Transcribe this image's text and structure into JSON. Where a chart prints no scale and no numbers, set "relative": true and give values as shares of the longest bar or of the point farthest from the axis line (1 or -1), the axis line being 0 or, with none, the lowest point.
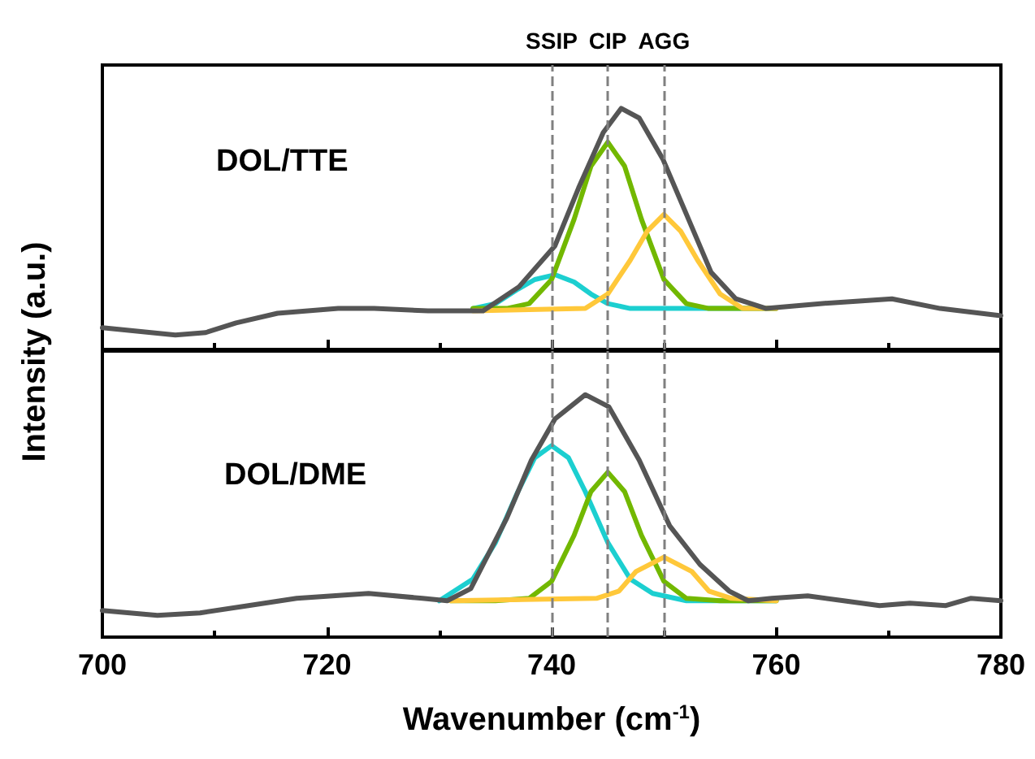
{
  "chart_data": [
    {
      "type": "line",
      "relative": true,
      "ylabel": "Intensity (a.u.)",
      "annotations": [
        "DOL/TTE"
      ],
      "xlim": [
        700,
        780
      ],
      "xticks": [
        700,
        720,
        740,
        760,
        780
      ],
      "tick_labels": false,
      "marker": "none",
      "line_style": "solid",
      "ref_lines": [
        {
          "axis": "x",
          "value": 740,
          "label": "SSIP",
          "color": "#808080",
          "line_style": "dashed"
        },
        {
          "axis": "x",
          "value": 745,
          "label": "CIP",
          "color": "#808080",
          "line_style": "dashed"
        },
        {
          "axis": "x",
          "value": 750,
          "label": "AGG",
          "color": "#808080",
          "line_style": "dashed"
        }
      ],
      "series": [
        {
          "color": "#1ccfd0",
          "x": [
            733,
            735,
            737,
            738.5,
            740.3,
            742,
            743.5,
            745,
            747,
            760
          ],
          "values": [
            0.17,
            0.19,
            0.25,
            0.29,
            0.31,
            0.28,
            0.23,
            0.19,
            0.17,
            0.17
          ]
        },
        {
          "color": "#72b800",
          "x": [
            733,
            736,
            738,
            740,
            742,
            743.5,
            745,
            746.5,
            748,
            750,
            752,
            754,
            760
          ],
          "values": [
            0.17,
            0.17,
            0.19,
            0.29,
            0.54,
            0.76,
            0.86,
            0.76,
            0.54,
            0.29,
            0.19,
            0.17,
            0.17
          ]
        },
        {
          "color": "#ffc83a",
          "x": [
            733,
            743,
            745,
            747,
            748.5,
            750,
            751.5,
            753,
            755,
            757,
            760
          ],
          "values": [
            0.16,
            0.17,
            0.23,
            0.37,
            0.49,
            0.56,
            0.49,
            0.37,
            0.23,
            0.17,
            0.17
          ]
        },
        {
          "color": "#555555",
          "x": [
            700,
            706.5,
            709.2,
            711.9,
            715.6,
            721,
            724.2,
            729,
            733.9,
            737.1,
            740.3,
            742.4,
            744.6,
            746.2,
            747.8,
            749.9,
            752.1,
            754.2,
            756.4,
            759.1,
            763.9,
            767.1,
            770.3,
            774.6,
            780
          ],
          "values": [
            0.09,
            0.06,
            0.07,
            0.11,
            0.15,
            0.17,
            0.17,
            0.16,
            0.16,
            0.26,
            0.43,
            0.67,
            0.9,
            1,
            0.96,
            0.79,
            0.55,
            0.32,
            0.21,
            0.17,
            0.19,
            0.2,
            0.21,
            0.17,
            0.14
          ]
        }
      ]
    },
    {
      "type": "line",
      "relative": true,
      "xlabel": "Wavenumber (cm$^{-1}$)",
      "annotations": [
        "DOL/DME"
      ],
      "xlim": [
        700,
        780
      ],
      "xticks": [
        700,
        720,
        740,
        760,
        780
      ],
      "tick_labels": "x",
      "marker": "none",
      "line_style": "solid",
      "ref_lines": [
        {
          "axis": "x",
          "value": 740,
          "color": "#808080",
          "line_style": "dashed"
        },
        {
          "axis": "x",
          "value": 745,
          "color": "#808080",
          "line_style": "dashed"
        },
        {
          "axis": "x",
          "value": 750,
          "color": "#808080",
          "line_style": "dashed"
        }
      ],
      "series": [
        {
          "color": "#1ccfd0",
          "x": [
            730,
            733,
            735,
            737,
            738.5,
            740,
            741.5,
            743,
            745,
            747,
            749,
            752,
            760
          ],
          "values": [
            0.15,
            0.24,
            0.39,
            0.6,
            0.74,
            0.79,
            0.74,
            0.6,
            0.39,
            0.24,
            0.18,
            0.15,
            0.15
          ]
        },
        {
          "color": "#72b800",
          "x": [
            731,
            735,
            738,
            740,
            742,
            743.5,
            745,
            746.5,
            748,
            750,
            752,
            755,
            760
          ],
          "values": [
            0.15,
            0.15,
            0.16,
            0.23,
            0.42,
            0.6,
            0.68,
            0.6,
            0.42,
            0.23,
            0.16,
            0.15,
            0.15
          ]
        },
        {
          "color": "#ffc83a",
          "x": [
            731,
            744,
            746,
            747.5,
            750,
            752.5,
            754,
            756,
            760
          ],
          "values": [
            0.15,
            0.16,
            0.19,
            0.27,
            0.33,
            0.27,
            0.19,
            0.16,
            0.15
          ]
        },
        {
          "color": "#555555",
          "x": [
            700,
            704.9,
            708.7,
            713,
            717.3,
            723.7,
            728.5,
            730.7,
            732.8,
            736,
            738.2,
            740.3,
            743,
            745.1,
            747.8,
            750.5,
            753.2,
            755.8,
            757.5,
            759.6,
            762.8,
            766,
            769.2,
            771.9,
            775.1,
            777.3,
            780
          ],
          "values": [
            0.11,
            0.09,
            0.1,
            0.13,
            0.16,
            0.18,
            0.16,
            0.15,
            0.2,
            0.49,
            0.73,
            0.9,
            1,
            0.95,
            0.73,
            0.46,
            0.3,
            0.19,
            0.15,
            0.16,
            0.17,
            0.15,
            0.13,
            0.14,
            0.13,
            0.16,
            0.15
          ]
        }
      ]
    }
  ]
}
